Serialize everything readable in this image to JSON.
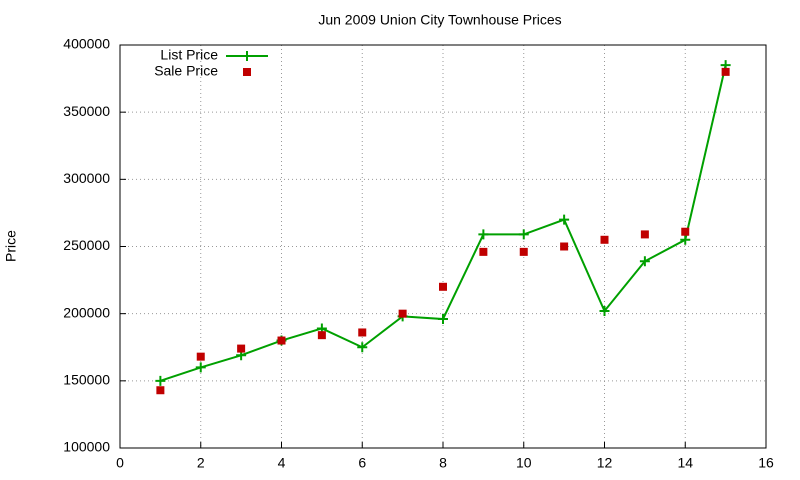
{
  "chart_data": {
    "type": "line",
    "title": "Jun 2009 Union City Townhouse Prices",
    "y_label": "Price",
    "x": [
      1,
      2,
      3,
      4,
      5,
      6,
      7,
      8,
      9,
      10,
      11,
      12,
      13,
      14,
      15
    ],
    "series": [
      {
        "name": "List Price",
        "color": "#00a000",
        "style": "linespoints",
        "values": [
          150000,
          160000,
          169000,
          180000,
          189000,
          175000,
          198000,
          196000,
          259000,
          259000,
          270000,
          202000,
          239000,
          255000,
          385000
        ]
      },
      {
        "name": "Sale Price",
        "color": "#c00000",
        "style": "points",
        "values": [
          143000,
          168000,
          174000,
          180000,
          184000,
          186000,
          200000,
          220000,
          246000,
          246000,
          250000,
          255000,
          259000,
          261000,
          380000
        ]
      }
    ],
    "xlim": [
      0,
      16
    ],
    "xticks": [
      0,
      2,
      4,
      6,
      8,
      10,
      12,
      14,
      16
    ],
    "ylim": [
      100000,
      400000
    ],
    "yticks": [
      100000,
      150000,
      200000,
      250000,
      300000,
      350000,
      400000
    ],
    "grid": true,
    "legend": "top-left"
  }
}
